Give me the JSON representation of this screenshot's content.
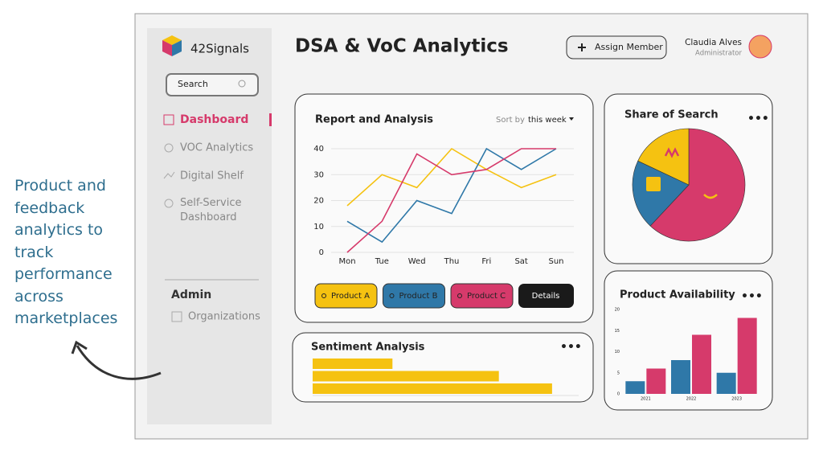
{
  "caption": "Product and feedback analytics to track performance across marketplaces",
  "sidebar": {
    "brand": "42Signals",
    "search": "Search",
    "nav": [
      "Dashboard",
      "VOC Analytics",
      "Digital Shelf",
      "Self-Service Dashboard"
    ],
    "admin": "Admin",
    "admin_nav": [
      "Organizations"
    ]
  },
  "header": {
    "title": "DSA & VoC Analytics",
    "button": "Assign Member",
    "user": "Claudia Alves",
    "role": "Administrator"
  },
  "chart_data": [
    {
      "type": "line",
      "title": "Report and Analysis",
      "sort_label": "Sort by",
      "sort_value": "this week",
      "categories": [
        "Mon",
        "Tue",
        "Wed",
        "Thu",
        "Fri",
        "Sat",
        "Sun"
      ],
      "ylim": [
        0,
        40
      ],
      "yticks": [
        0,
        10,
        20,
        30,
        40
      ],
      "grid": true,
      "series": [
        {
          "name": "Product A",
          "color": "#f5c211",
          "values": [
            18,
            30,
            25,
            40,
            32,
            25,
            30
          ]
        },
        {
          "name": "Product B",
          "color": "#2f78a8",
          "values": [
            12,
            4,
            20,
            15,
            40,
            32,
            40
          ]
        },
        {
          "name": "Product C",
          "color": "#d63a6b",
          "values": [
            0,
            12,
            38,
            30,
            32,
            40,
            40
          ]
        }
      ],
      "details": "Details"
    },
    {
      "type": "pie",
      "title": "Share of Search",
      "values": [
        62,
        20,
        18
      ],
      "colors": [
        "#d63a6b",
        "#2f78a8",
        "#f5c211"
      ]
    },
    {
      "type": "hbar",
      "title": "Sentiment Analysis",
      "values": [
        30,
        70,
        90
      ],
      "xlim": [
        0,
        100
      ],
      "color": "#f5c211"
    },
    {
      "type": "bar",
      "title": "Product Availability",
      "categories": [
        "2021",
        "2022",
        "2023"
      ],
      "ylim": [
        0,
        20
      ],
      "yticks": [
        0,
        5,
        10,
        15,
        20
      ],
      "series": [
        {
          "color": "#2f78a8",
          "values": [
            3,
            8,
            5
          ]
        },
        {
          "color": "#d63a6b",
          "values": [
            6,
            14,
            18
          ]
        }
      ]
    }
  ]
}
